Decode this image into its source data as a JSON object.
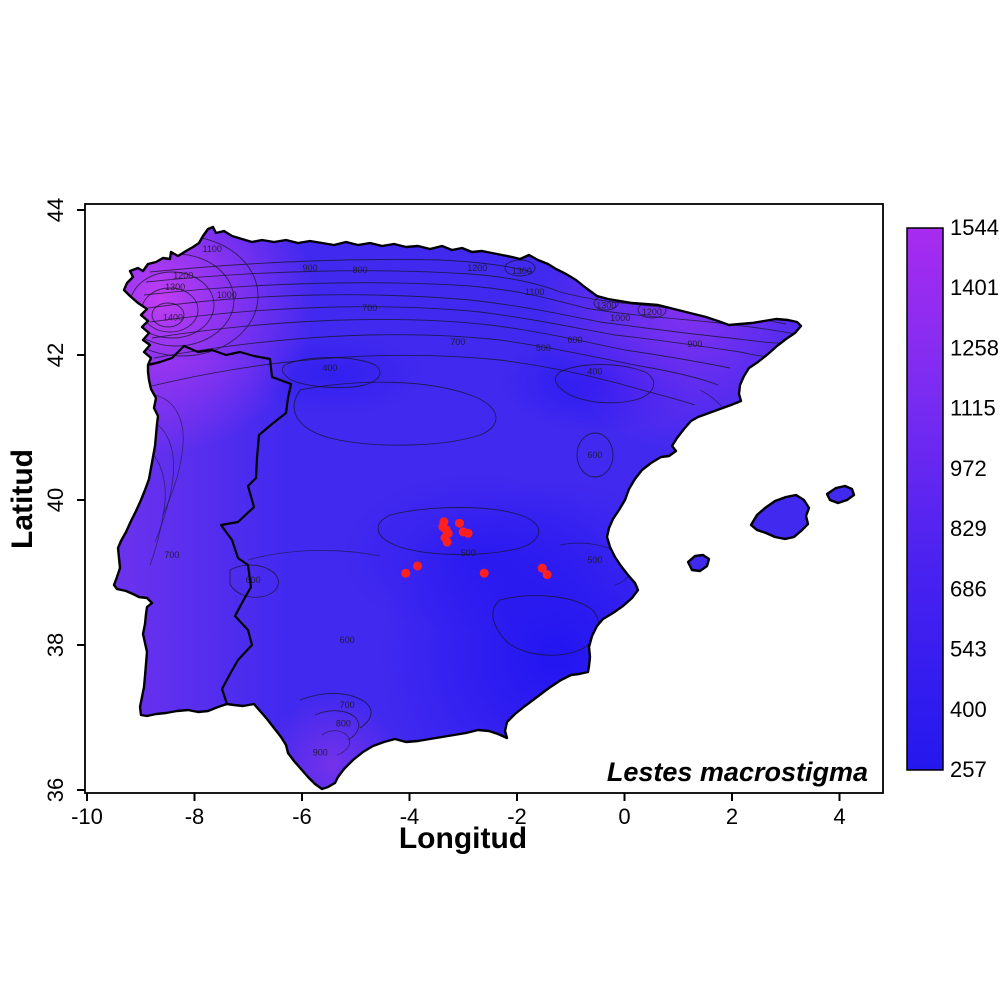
{
  "chart_data": {
    "type": "heatmap",
    "subtype": "filled-contour-map",
    "title": "",
    "xlabel": "Longitud",
    "ylabel": "Latitud",
    "annotation": "Lestes macrostigma",
    "xlim": [
      -10.5,
      4.8
    ],
    "ylim": [
      35.95,
      44.1
    ],
    "x_ticks": [
      -10,
      -8,
      -6,
      -4,
      -2,
      0,
      2,
      4
    ],
    "y_ticks": [
      36,
      38,
      40,
      42,
      44
    ],
    "grid": false,
    "legend_position": "right-colorbar",
    "colorbar": {
      "ticks": [
        257,
        400,
        543,
        686,
        829,
        972,
        1115,
        1258,
        1401,
        1544
      ],
      "min": 257,
      "max": 1544,
      "color_low": "#2418EE",
      "color_mid": "#5A28F0",
      "color_high": "#A82BF0"
    },
    "contour_labels": [
      {
        "value": 1400,
        "lon": -8.4,
        "lat": 42.52
      },
      {
        "value": 1300,
        "lon": -8.36,
        "lat": 42.94
      },
      {
        "value": 1200,
        "lon": -8.21,
        "lat": 43.1
      },
      {
        "value": 1100,
        "lon": -7.67,
        "lat": 43.46
      },
      {
        "value": 1000,
        "lon": -7.4,
        "lat": 42.83
      },
      {
        "value": 900,
        "lon": -5.85,
        "lat": 43.2
      },
      {
        "value": 800,
        "lon": -4.92,
        "lat": 43.17
      },
      {
        "value": 1200,
        "lon": -2.74,
        "lat": 43.2
      },
      {
        "value": 1300,
        "lon": -1.91,
        "lat": 43.16
      },
      {
        "value": 1100,
        "lon": -1.67,
        "lat": 42.87
      },
      {
        "value": 1300,
        "lon": -0.34,
        "lat": 42.68
      },
      {
        "value": 1000,
        "lon": -0.08,
        "lat": 42.51
      },
      {
        "value": 1200,
        "lon": 0.51,
        "lat": 42.59
      },
      {
        "value": 900,
        "lon": 1.31,
        "lat": 42.15
      },
      {
        "value": 700,
        "lon": -4.74,
        "lat": 42.65
      },
      {
        "value": 700,
        "lon": -3.1,
        "lat": 42.18
      },
      {
        "value": 600,
        "lon": -0.92,
        "lat": 42.21
      },
      {
        "value": 500,
        "lon": -1.51,
        "lat": 42.1
      },
      {
        "value": 400,
        "lon": -0.55,
        "lat": 41.77
      },
      {
        "value": 400,
        "lon": -5.48,
        "lat": 41.82
      },
      {
        "value": 600,
        "lon": -0.55,
        "lat": 40.62
      },
      {
        "value": 500,
        "lon": -2.91,
        "lat": 39.27
      },
      {
        "value": 500,
        "lon": -0.55,
        "lat": 39.17
      },
      {
        "value": 700,
        "lon": -8.42,
        "lat": 39.24
      },
      {
        "value": 600,
        "lon": -6.91,
        "lat": 38.9
      },
      {
        "value": 600,
        "lon": -5.16,
        "lat": 38.07
      },
      {
        "value": 700,
        "lon": -5.16,
        "lat": 37.17
      },
      {
        "value": 800,
        "lon": -5.23,
        "lat": 36.92
      },
      {
        "value": 900,
        "lon": -5.66,
        "lat": 36.52
      }
    ],
    "series": [
      {
        "name": "Lestes macrostigma",
        "type": "scatter",
        "color": "#FF1F1F",
        "points": [
          [
            -3.36,
            39.7
          ],
          [
            -3.38,
            39.63
          ],
          [
            -3.32,
            39.59
          ],
          [
            -3.28,
            39.54
          ],
          [
            -3.34,
            39.48
          ],
          [
            -3.3,
            39.42
          ],
          [
            -3.07,
            39.68
          ],
          [
            -3.0,
            39.56
          ],
          [
            -2.91,
            39.54
          ],
          [
            -4.07,
            38.99
          ],
          [
            -3.85,
            39.09
          ],
          [
            -2.61,
            38.99
          ],
          [
            -1.53,
            39.06
          ],
          [
            -1.44,
            38.97
          ]
        ]
      }
    ]
  }
}
